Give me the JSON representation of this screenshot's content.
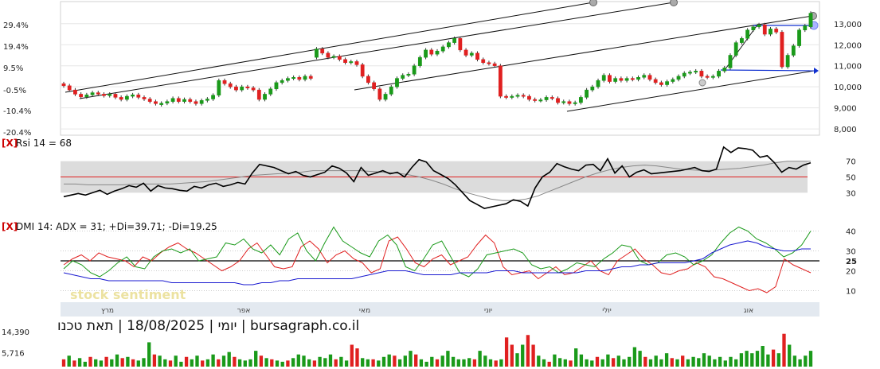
{
  "chart_data": [
    {
      "type": "candlestick",
      "panel": "price",
      "pct_ticks": [
        "29.4%",
        "19.4%",
        "9.5%",
        "-0.5%",
        "-10.4%",
        "-20.4%"
      ],
      "price_ticks": [
        "13,000",
        "12,000",
        "11,000",
        "10,000",
        "9,000",
        "8,000"
      ],
      "ylim": [
        7700,
        13900
      ],
      "closes": [
        10050,
        9850,
        9650,
        9520,
        9620,
        9720,
        9650,
        9580,
        9650,
        9500,
        9400,
        9550,
        9620,
        9500,
        9420,
        9300,
        9200,
        9220,
        9300,
        9450,
        9300,
        9400,
        9300,
        9200,
        9350,
        9420,
        9600,
        10300,
        10150,
        10000,
        9850,
        10000,
        9950,
        9850,
        9400,
        9650,
        9900,
        10200,
        10300,
        10400,
        10450,
        10350,
        10500,
        10400,
        11800,
        11600,
        11400,
        11450,
        11300,
        11150,
        11200,
        11050,
        10500,
        10200,
        9900,
        9400,
        9650,
        10000,
        10400,
        10550,
        10600,
        11000,
        11400,
        11750,
        11550,
        11700,
        11900,
        12100,
        12300,
        11750,
        11500,
        11600,
        11300,
        11150,
        11100,
        11000,
        9550,
        9500,
        9550,
        9600,
        9550,
        9400,
        9350,
        9380,
        9500,
        9450,
        9250,
        9300,
        9200,
        9250,
        9500,
        9850,
        10000,
        10300,
        10550,
        10250,
        10400,
        10300,
        10400,
        10350,
        10450,
        10550,
        10350,
        10200,
        10100,
        10250,
        10350,
        10500,
        10650,
        10700,
        10750,
        10500,
        10450,
        10500,
        10750,
        10900,
        11500,
        12100,
        12300,
        12700,
        12850,
        12950,
        12500,
        12750,
        12600,
        10950,
        11500,
        11950,
        12700,
        12900,
        13500
      ],
      "opens": [
        10150,
        10050,
        9850,
        9650,
        9520,
        9620,
        9720,
        9650,
        9580,
        9650,
        9500,
        9400,
        9550,
        9620,
        9500,
        9420,
        9300,
        9150,
        9220,
        9300,
        9450,
        9300,
        9400,
        9300,
        9200,
        9350,
        9420,
        9600,
        10300,
        10150,
        10000,
        9850,
        10000,
        9950,
        9850,
        9400,
        9650,
        9900,
        10200,
        10300,
        10400,
        10450,
        10350,
        10500,
        11400,
        11800,
        11600,
        11400,
        11450,
        11300,
        11150,
        11200,
        11050,
        10500,
        10200,
        9900,
        9400,
        9650,
        10000,
        10400,
        10550,
        10600,
        11000,
        11400,
        11750,
        11550,
        11700,
        11900,
        12100,
        12300,
        11750,
        11500,
        11600,
        11300,
        11150,
        11100,
        11000,
        9550,
        9500,
        9550,
        9600,
        9550,
        9400,
        9350,
        9380,
        9500,
        9450,
        9250,
        9300,
        9200,
        9250,
        9500,
        9850,
        10000,
        10300,
        10550,
        10250,
        10400,
        10300,
        10400,
        10350,
        10450,
        10550,
        10350,
        10200,
        10100,
        10250,
        10350,
        10500,
        10650,
        10700,
        10750,
        10500,
        10450,
        10500,
        10750,
        10900,
        11500,
        12100,
        12300,
        12700,
        12850,
        12950,
        12500,
        12750,
        12600,
        10950,
        11500,
        11950,
        12700,
        12850
      ]
    },
    {
      "type": "line",
      "panel": "rsi",
      "title": "Rsi 14 = 68",
      "close_marker": "[X]",
      "yticks": [
        "70",
        "50",
        "30"
      ],
      "ylim": [
        0,
        100
      ],
      "band": [
        30,
        70
      ],
      "series": [
        {
          "values": [
            25,
            27,
            29,
            27,
            30,
            33,
            28,
            32,
            35,
            39,
            37,
            42,
            32,
            39,
            36,
            35,
            33,
            32,
            38,
            36,
            40,
            42,
            38,
            40,
            43,
            41,
            55,
            66,
            64,
            62,
            58,
            54,
            57,
            52,
            50,
            53,
            56,
            64,
            61,
            55,
            44,
            62,
            52,
            55,
            58,
            54,
            56,
            50,
            62,
            72,
            69,
            58,
            53,
            48,
            40,
            30,
            20,
            15,
            10,
            12,
            14,
            16,
            21,
            19,
            13,
            36,
            50,
            56,
            67,
            63,
            60,
            58,
            65,
            66,
            58,
            73,
            55,
            64,
            50,
            56,
            59,
            54,
            55,
            56,
            57,
            58,
            60,
            62,
            58,
            57,
            60,
            88,
            81,
            87,
            86,
            84,
            75,
            77,
            68,
            56,
            62,
            60,
            65,
            68
          ]
        },
        {
          "values": [
            41,
            41,
            40,
            40,
            40,
            40,
            41,
            41,
            41,
            41,
            42,
            43,
            44,
            46,
            48,
            50,
            52,
            53,
            54,
            55,
            56,
            58,
            58,
            58,
            58,
            58,
            57,
            56,
            55,
            53,
            50,
            46,
            41,
            35,
            30,
            26,
            22,
            20,
            20,
            22,
            26,
            32,
            38,
            44,
            50,
            55,
            59,
            62,
            64,
            65,
            64,
            62,
            60,
            59,
            58,
            59,
            60,
            61,
            63,
            65,
            68,
            70,
            70,
            70
          ]
        }
      ]
    },
    {
      "type": "line",
      "panel": "dmi",
      "title": "DMI 14: ADX = 31; +Di=39.71; -Di=19.25",
      "close_marker": "[X]",
      "yticks": [
        "40",
        "30",
        "25",
        "20",
        "10"
      ],
      "ylim": [
        5,
        43
      ],
      "reference_line": 25,
      "series": [
        {
          "values": [
            23,
            26,
            28,
            25,
            29,
            27,
            26,
            25,
            22,
            27,
            25,
            29,
            32,
            34,
            31,
            29,
            26,
            23,
            20,
            22,
            25,
            31,
            34,
            28,
            22,
            21,
            22,
            32,
            35,
            31,
            24,
            28,
            30,
            26,
            24,
            19,
            21,
            35,
            37,
            31,
            24,
            22,
            26,
            28,
            23,
            25,
            27,
            33,
            38,
            34,
            22,
            18,
            19,
            20,
            16,
            19,
            22,
            18,
            19,
            22,
            25,
            20,
            18,
            25,
            28,
            31,
            26,
            23,
            19,
            18,
            20,
            21,
            24,
            22,
            17,
            16,
            14,
            12,
            10,
            11,
            9,
            12,
            26,
            23,
            21,
            19
          ]
        },
        {
          "values": [
            21,
            25,
            23,
            19,
            17,
            20,
            24,
            27,
            22,
            21,
            27,
            30,
            31,
            29,
            31,
            25,
            26,
            27,
            34,
            33,
            36,
            31,
            29,
            33,
            28,
            36,
            39,
            30,
            25,
            34,
            42,
            35,
            32,
            29,
            27,
            35,
            38,
            33,
            22,
            20,
            26,
            33,
            35,
            27,
            19,
            17,
            21,
            28,
            29,
            30,
            31,
            29,
            23,
            21,
            22,
            19,
            21,
            24,
            23,
            22,
            26,
            29,
            33,
            32,
            25,
            23,
            24,
            28,
            29,
            27,
            23,
            25,
            28,
            34,
            39,
            42,
            40,
            36,
            34,
            31,
            27,
            29,
            33,
            40
          ]
        },
        {
          "values": [
            19,
            18,
            17,
            16,
            16,
            15,
            15,
            15,
            15,
            15,
            15,
            15,
            14,
            14,
            14,
            14,
            14,
            14,
            14,
            14,
            13,
            13,
            14,
            14,
            15,
            15,
            16,
            16,
            16,
            16,
            16,
            16,
            16,
            17,
            18,
            19,
            20,
            20,
            20,
            19,
            18,
            18,
            18,
            18,
            19,
            19,
            19,
            19,
            20,
            20,
            20,
            19,
            19,
            19,
            19,
            19,
            19,
            19,
            20,
            20,
            20,
            21,
            22,
            22,
            23,
            23,
            24,
            24,
            24,
            24,
            25,
            26,
            29,
            31,
            33,
            34,
            35,
            34,
            32,
            31,
            30,
            30,
            31,
            31
          ]
        }
      ]
    },
    {
      "type": "bar",
      "panel": "volume",
      "yticks": [
        "14,390",
        "5,716"
      ],
      "ylim": [
        0,
        14390
      ],
      "values": [
        3000,
        4500,
        2500,
        3500,
        2000,
        4000,
        3000,
        2500,
        4000,
        3000,
        5000,
        3500,
        4000,
        3000,
        2500,
        3500,
        10000,
        5000,
        4500,
        3000,
        2500,
        4500,
        2000,
        4000,
        3000,
        4500,
        2500,
        3000,
        5000,
        3000,
        4500,
        6000,
        4000,
        3000,
        2500,
        3000,
        6500,
        4500,
        3500,
        3000,
        2500,
        2000,
        2500,
        3500,
        5000,
        4500,
        3000,
        2500,
        4000,
        3500,
        5000,
        3000,
        4000,
        2500,
        9000,
        7500,
        3500,
        3000,
        3000,
        2500,
        4000,
        5000,
        4500,
        3000,
        4500,
        6500,
        5000,
        3000,
        2000,
        4000,
        3000,
        4500,
        6500,
        4000,
        3000,
        3000,
        3500,
        3000,
        6500,
        4500,
        3000,
        2500,
        3000,
        12000,
        9000,
        5500,
        9000,
        13000,
        9000,
        4500,
        3000,
        2000,
        5000,
        3500,
        3000,
        2500,
        7500,
        5000,
        3000,
        2500,
        4000,
        3000,
        5000,
        3500,
        4500,
        3000,
        4000,
        8000,
        6500,
        4000,
        3000,
        4500,
        3000,
        5500,
        3500,
        3000,
        4500,
        3000,
        4000,
        3500,
        5500,
        4500,
        3000,
        4000,
        2500,
        4000,
        3000,
        5500,
        6500,
        5500,
        6500,
        8500,
        5000,
        7000,
        5500,
        13500,
        9000,
        4500,
        3000,
        4500,
        6500
      ],
      "down_flags": [
        1,
        0,
        1,
        0,
        0,
        1,
        0,
        0,
        1,
        0,
        0,
        1,
        0,
        1,
        0,
        0,
        0,
        1,
        0,
        0,
        1,
        0,
        0,
        1,
        0,
        0,
        1,
        0,
        0,
        1,
        0,
        0,
        1,
        0,
        0,
        0,
        0,
        1,
        0,
        1,
        0,
        0,
        1,
        0,
        0,
        0,
        0,
        1,
        0,
        0,
        0,
        1,
        0,
        0,
        1,
        1,
        0,
        0,
        1,
        0,
        0,
        0,
        1,
        0,
        0,
        0,
        1,
        0,
        0,
        0,
        1,
        0,
        0,
        0,
        0,
        0,
        0,
        1,
        0,
        0,
        0,
        1,
        0,
        1,
        1,
        0,
        0,
        1,
        1,
        0,
        0,
        1,
        0,
        0,
        0,
        1,
        0,
        0,
        0,
        0,
        1,
        0,
        0,
        1,
        0,
        0,
        0,
        0,
        0,
        1,
        0,
        0,
        0,
        0,
        1,
        0,
        1,
        0,
        0,
        0,
        0,
        0,
        0,
        0,
        0,
        0,
        0,
        0,
        0,
        0,
        0,
        0,
        0,
        1,
        0,
        1,
        0,
        0,
        0,
        0
      ]
    }
  ],
  "x_axis": {
    "months": [
      "מרץ",
      "אפר",
      "מאי",
      "יוני",
      "יולי",
      "אוג"
    ]
  },
  "credit": "יומי | 18/08/2025 | תאת טכנו | bursagraph.co.il",
  "watermark": "stock sentiment",
  "colors": {
    "up": "#1a9a1a",
    "down": "#e02020",
    "plus_di": "#1a9a1a",
    "minus_di": "#e02020",
    "adx": "#1a1ad0",
    "rsi_main": "#000000",
    "rsi_signal": "#888888",
    "close_marker": "#cc0000",
    "target_arrow": "#1030d0"
  }
}
